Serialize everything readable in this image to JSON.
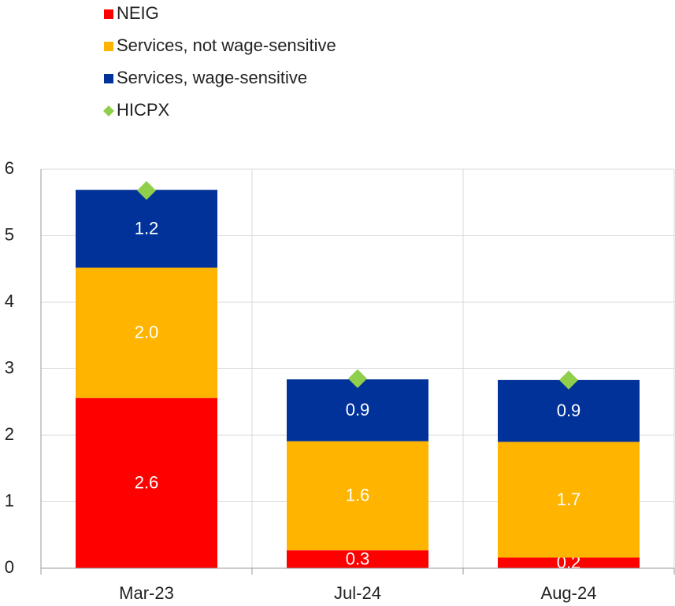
{
  "chart_data": {
    "type": "bar",
    "stacked": true,
    "categories": [
      "Mar-23",
      "Jul-24",
      "Aug-24"
    ],
    "series": [
      {
        "name": "NEIG",
        "type": "bar",
        "color": "#ff0000",
        "values": [
          2.56,
          0.27,
          0.16
        ],
        "value_labels": [
          "2.6",
          "0.3",
          "0.2"
        ]
      },
      {
        "name": "Services, not wage-sensitive",
        "type": "bar",
        "color": "#ffb400",
        "values": [
          1.96,
          1.64,
          1.74
        ],
        "value_labels": [
          "2.0",
          "1.6",
          "1.7"
        ]
      },
      {
        "name": "Services, wage-sensitive",
        "type": "bar",
        "color": "#003299",
        "values": [
          1.17,
          0.93,
          0.93
        ],
        "value_labels": [
          "1.2",
          "0.9",
          "0.9"
        ]
      },
      {
        "name": "HICPX",
        "type": "scatter",
        "color": "#8fcf4c",
        "values": [
          5.68,
          2.85,
          2.83
        ]
      }
    ],
    "ylim": [
      0,
      6
    ],
    "yticks": [
      0,
      1,
      2,
      3,
      4,
      5,
      6
    ],
    "grid": true,
    "legend": "top-left"
  }
}
